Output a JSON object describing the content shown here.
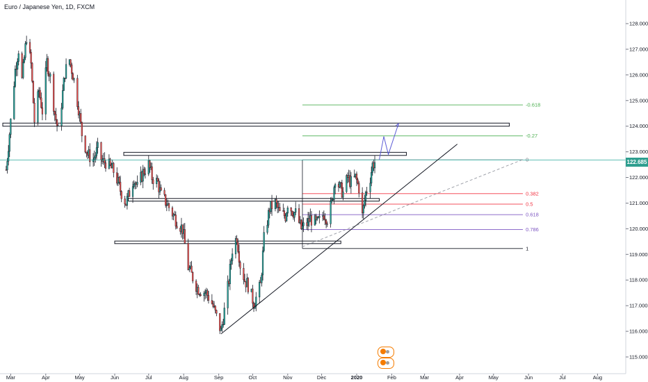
{
  "title": "Euro / Japanese Yen, 1D, FXCM",
  "last_price": "122.685",
  "colors": {
    "up": "#26a69a",
    "down": "#ef5350",
    "candle": "#131722",
    "fib0": "#787b86",
    "fibgreen": "#4caf50",
    "fibred": "#f23645",
    "fibpurple": "#7e57c2",
    "projection": "#5b5bd6",
    "lastprice": "#26a69a",
    "event": "#f57c00"
  },
  "chart_data": {
    "type": "candlestick",
    "ylim": [
      114.8,
      128.9
    ],
    "y_ticks": [
      "128.000",
      "127.000",
      "126.000",
      "125.000",
      "124.000",
      "123.000",
      "122.000",
      "121.000",
      "120.000",
      "119.000",
      "118.000",
      "117.000",
      "116.000",
      "115.000"
    ],
    "x_ticks": [
      "Mar",
      "Apr",
      "May",
      "Jun",
      "Jul",
      "Aug",
      "Sep",
      "Oct",
      "Nov",
      "Dec",
      "2020",
      "Feb",
      "Mar",
      "Apr",
      "May",
      "Jun",
      "Jul",
      "Aug"
    ],
    "last_price": 122.685,
    "ohlc_path": [
      [
        "2019-02-25",
        122.3
      ],
      [
        "2019-03-01",
        124.2
      ],
      [
        "2019-03-05",
        126.2
      ],
      [
        "2019-03-08",
        127.0
      ],
      [
        "2019-03-11",
        125.8
      ],
      [
        "2019-03-15",
        127.5
      ],
      [
        "2019-03-19",
        126.4
      ],
      [
        "2019-03-22",
        124.2
      ],
      [
        "2019-03-26",
        125.4
      ],
      [
        "2019-03-29",
        124.6
      ],
      [
        "2019-04-02",
        126.5
      ],
      [
        "2019-04-05",
        125.9
      ],
      [
        "2019-04-09",
        124.5
      ],
      [
        "2019-04-12",
        123.8
      ],
      [
        "2019-04-15",
        124.9
      ],
      [
        "2019-04-18",
        126.1
      ],
      [
        "2019-04-22",
        126.6
      ],
      [
        "2019-04-26",
        125.8
      ],
      [
        "2019-04-30",
        124.7
      ],
      [
        "2019-05-03",
        123.7
      ],
      [
        "2019-05-08",
        122.9
      ],
      [
        "2019-05-13",
        122.7
      ],
      [
        "2019-05-17",
        123.1
      ],
      [
        "2019-05-21",
        122.6
      ],
      [
        "2019-05-24",
        122.6
      ],
      [
        "2019-05-28",
        122.4
      ],
      [
        "2019-06-01",
        122.2
      ],
      [
        "2019-06-06",
        121.5
      ],
      [
        "2019-06-11",
        121.0
      ],
      [
        "2019-06-14",
        121.4
      ],
      [
        "2019-06-18",
        122.0
      ],
      [
        "2019-06-21",
        121.6
      ],
      [
        "2019-06-26",
        122.2
      ],
      [
        "2019-07-01",
        122.5
      ],
      [
        "2019-07-04",
        122.0
      ],
      [
        "2019-07-09",
        121.8
      ],
      [
        "2019-07-12",
        121.3
      ],
      [
        "2019-07-17",
        121.0
      ],
      [
        "2019-07-22",
        120.6
      ],
      [
        "2019-07-26",
        120.3
      ],
      [
        "2019-07-31",
        120.0
      ],
      [
        "2019-08-05",
        118.5
      ],
      [
        "2019-08-08",
        118.2
      ],
      [
        "2019-08-13",
        117.7
      ],
      [
        "2019-08-16",
        117.6
      ],
      [
        "2019-08-21",
        117.5
      ],
      [
        "2019-08-26",
        117.1
      ],
      [
        "2019-08-29",
        116.7
      ],
      [
        "2019-09-03",
        116.0
      ],
      [
        "2019-09-06",
        116.8
      ],
      [
        "2019-09-10",
        118.0
      ],
      [
        "2019-09-13",
        119.2
      ],
      [
        "2019-09-17",
        119.7
      ],
      [
        "2019-09-20",
        118.6
      ],
      [
        "2019-09-24",
        118.0
      ],
      [
        "2019-09-27",
        117.8
      ],
      [
        "2019-10-02",
        117.1
      ],
      [
        "2019-10-04",
        117.3
      ],
      [
        "2019-10-08",
        117.8
      ],
      [
        "2019-10-11",
        119.6
      ],
      [
        "2019-10-16",
        120.8
      ],
      [
        "2019-10-21",
        121.0
      ],
      [
        "2019-10-25",
        120.6
      ],
      [
        "2019-10-30",
        120.5
      ],
      [
        "2019-11-01",
        121.0
      ],
      [
        "2019-11-05",
        120.7
      ],
      [
        "2019-11-08",
        120.6
      ],
      [
        "2019-11-13",
        120.0
      ],
      [
        "2019-11-18",
        120.2
      ],
      [
        "2019-11-21",
        120.4
      ],
      [
        "2019-11-26",
        120.2
      ],
      [
        "2019-11-29",
        120.3
      ],
      [
        "2019-12-03",
        120.6
      ],
      [
        "2019-12-06",
        120.4
      ],
      [
        "2019-12-10",
        121.0
      ],
      [
        "2019-12-13",
        122.0
      ],
      [
        "2019-12-17",
        121.6
      ],
      [
        "2019-12-20",
        121.4
      ],
      [
        "2019-12-24",
        122.0
      ],
      [
        "2019-12-27",
        121.8
      ],
      [
        "2019-12-31",
        122.0
      ],
      [
        "2020-01-03",
        121.6
      ],
      [
        "2020-01-06",
        120.5
      ],
      [
        "2020-01-09",
        121.4
      ],
      [
        "2020-01-13",
        122.0
      ],
      [
        "2020-01-15",
        122.5
      ],
      [
        "2020-01-17",
        122.6
      ]
    ],
    "trendline": [
      [
        "2019-09-03",
        115.9
      ],
      [
        "2020-03-30",
        123.3
      ]
    ],
    "dashed_trendline": [
      [
        "2019-11-14",
        119.3
      ],
      [
        "2020-05-27",
        122.7
      ]
    ],
    "zones": [
      {
        "x0": "2019-02-22",
        "x1": "2020-05-15",
        "y0": 124.0,
        "y1": 124.12
      },
      {
        "x0": "2019-06-09",
        "x1": "2020-02-14",
        "y0": 122.86,
        "y1": 122.98
      },
      {
        "x0": "2019-06-13",
        "x1": "2020-01-21",
        "y0": 121.08,
        "y1": 121.18
      },
      {
        "x0": "2019-06-01",
        "x1": "2019-12-18",
        "y0": 119.42,
        "y1": 119.52
      }
    ],
    "fib_x": [
      "2019-11-14",
      "2020-05-27"
    ],
    "fib_levels": [
      {
        "label": "-0.618",
        "price": 124.83,
        "color": "#4caf50"
      },
      {
        "label": "-0.27",
        "price": 123.62,
        "color": "#4caf50"
      },
      {
        "label": "0",
        "price": 122.69,
        "color": "#787b86"
      },
      {
        "label": "0.382",
        "price": 121.37,
        "color": "#f23645"
      },
      {
        "label": "0.5",
        "price": 120.96,
        "color": "#f23645"
      },
      {
        "label": "0.618",
        "price": 120.55,
        "color": "#7e57c2"
      },
      {
        "label": "0.786",
        "price": 119.97,
        "color": "#7e57c2"
      },
      {
        "label": "1",
        "price": 119.23,
        "color": "#131722"
      }
    ],
    "projection": [
      [
        "2020-01-21",
        122.7
      ],
      [
        "2020-01-25",
        123.6
      ],
      [
        "2020-01-29",
        122.9
      ],
      [
        "2020-02-07",
        124.1
      ]
    ]
  }
}
